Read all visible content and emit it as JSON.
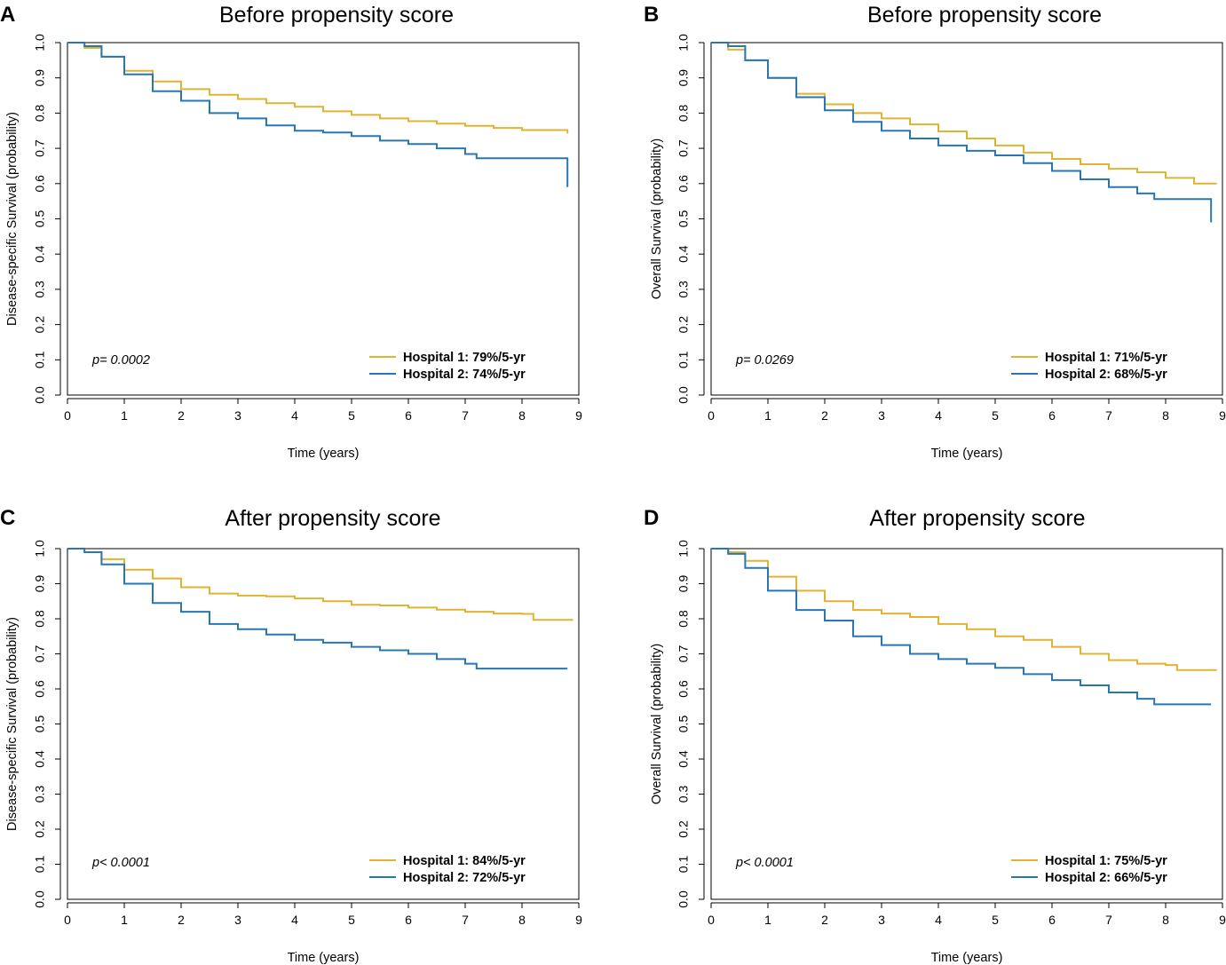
{
  "colors": {
    "hospital1": "#E0B431",
    "hospital2": "#2777B5",
    "axis": "#000000"
  },
  "chart_data": [
    {
      "type": "line",
      "panel": "A",
      "title": "Before propensity score",
      "xlabel": "Time (years)",
      "ylabel": "Disease-specific Survival (probability)",
      "xlim": [
        0,
        9
      ],
      "ylim": [
        0,
        1
      ],
      "xticks": [
        "0",
        "1",
        "2",
        "3",
        "4",
        "5",
        "6",
        "7",
        "8",
        "9"
      ],
      "yticks": [
        "0.0",
        "0.1",
        "0.2",
        "0.3",
        "0.4",
        "0.5",
        "0.6",
        "0.7",
        "0.8",
        "0.9",
        "1.0"
      ],
      "pvalue": "p= 0.0002",
      "legend_position": "bottom-right",
      "series": [
        {
          "name": "Hospital 1: 79%/5-yr",
          "color": "#E0B431",
          "x": [
            0,
            0.3,
            0.6,
            1.0,
            1.5,
            2.0,
            2.5,
            3.0,
            3.5,
            4.0,
            4.5,
            5.0,
            5.5,
            6.0,
            6.5,
            7.0,
            7.5,
            8.0,
            8.8
          ],
          "y": [
            1.0,
            0.985,
            0.96,
            0.92,
            0.89,
            0.868,
            0.852,
            0.84,
            0.828,
            0.818,
            0.805,
            0.795,
            0.785,
            0.777,
            0.77,
            0.764,
            0.758,
            0.752,
            0.742
          ]
        },
        {
          "name": "Hospital 2: 74%/5-yr",
          "color": "#2777B5",
          "x": [
            0,
            0.3,
            0.6,
            1.0,
            1.5,
            2.0,
            2.5,
            3.0,
            3.5,
            4.0,
            4.5,
            5.0,
            5.5,
            6.0,
            6.5,
            7.0,
            7.2,
            8.8,
            8.8
          ],
          "y": [
            1.0,
            0.99,
            0.96,
            0.91,
            0.862,
            0.835,
            0.8,
            0.785,
            0.765,
            0.75,
            0.745,
            0.735,
            0.722,
            0.712,
            0.7,
            0.684,
            0.672,
            0.672,
            0.59
          ]
        }
      ]
    },
    {
      "type": "line",
      "panel": "B",
      "title": "Before propensity score",
      "xlabel": "Time (years)",
      "ylabel": "Overall Survival (probability)",
      "xlim": [
        0,
        9
      ],
      "ylim": [
        0,
        1
      ],
      "xticks": [
        "0",
        "1",
        "2",
        "3",
        "4",
        "5",
        "6",
        "7",
        "8",
        "9"
      ],
      "yticks": [
        "0.0",
        "0.1",
        "0.2",
        "0.3",
        "0.4",
        "0.5",
        "0.6",
        "0.7",
        "0.8",
        "0.9",
        "1.0"
      ],
      "pvalue": "p= 0.0269",
      "legend_position": "bottom-right",
      "series": [
        {
          "name": "Hospital 1: 71%/5-yr",
          "color": "#E0B431",
          "x": [
            0,
            0.3,
            0.6,
            1.0,
            1.5,
            2.0,
            2.5,
            3.0,
            3.5,
            4.0,
            4.5,
            5.0,
            5.5,
            6.0,
            6.5,
            7.0,
            7.5,
            8.0,
            8.5,
            8.9
          ],
          "y": [
            1.0,
            0.98,
            0.95,
            0.9,
            0.855,
            0.825,
            0.8,
            0.785,
            0.768,
            0.748,
            0.728,
            0.708,
            0.688,
            0.67,
            0.655,
            0.642,
            0.632,
            0.616,
            0.6,
            0.6
          ]
        },
        {
          "name": "Hospital 2: 68%/5-yr",
          "color": "#2777B5",
          "x": [
            0,
            0.3,
            0.6,
            1.0,
            1.5,
            2.0,
            2.5,
            3.0,
            3.5,
            4.0,
            4.5,
            5.0,
            5.5,
            6.0,
            6.5,
            7.0,
            7.5,
            7.8,
            8.8,
            8.8
          ],
          "y": [
            1.0,
            0.99,
            0.95,
            0.9,
            0.845,
            0.808,
            0.775,
            0.75,
            0.728,
            0.708,
            0.693,
            0.68,
            0.658,
            0.636,
            0.612,
            0.59,
            0.572,
            0.556,
            0.556,
            0.49
          ]
        }
      ]
    },
    {
      "type": "line",
      "panel": "C",
      "title": "After propensity score",
      "xlabel": "Time (years)",
      "ylabel": "Disease-specific Survival (probability)",
      "xlim": [
        0,
        9
      ],
      "ylim": [
        0,
        1
      ],
      "xticks": [
        "0",
        "1",
        "2",
        "3",
        "4",
        "5",
        "6",
        "7",
        "8",
        "9"
      ],
      "yticks": [
        "0.0",
        "0.1",
        "0.2",
        "0.3",
        "0.4",
        "0.5",
        "0.6",
        "0.7",
        "0.8",
        "0.9",
        "1.0"
      ],
      "pvalue": "p< 0.0001",
      "legend_position": "bottom-right",
      "series": [
        {
          "name": "Hospital 1: 84%/5-yr",
          "color": "#E0B431",
          "x": [
            0,
            0.3,
            0.6,
            1.0,
            1.5,
            2.0,
            2.5,
            3.0,
            3.5,
            4.0,
            4.5,
            5.0,
            5.5,
            6.0,
            6.5,
            7.0,
            7.5,
            8.0,
            8.2,
            8.9
          ],
          "y": [
            1.0,
            0.99,
            0.97,
            0.94,
            0.915,
            0.89,
            0.872,
            0.866,
            0.864,
            0.858,
            0.85,
            0.84,
            0.838,
            0.832,
            0.826,
            0.82,
            0.815,
            0.814,
            0.797,
            0.797
          ]
        },
        {
          "name": "Hospital 2: 72%/5-yr",
          "color": "#2777B5",
          "x": [
            0,
            0.3,
            0.6,
            1.0,
            1.5,
            2.0,
            2.5,
            3.0,
            3.5,
            4.0,
            4.5,
            5.0,
            5.5,
            6.0,
            6.5,
            7.0,
            7.2,
            8.8
          ],
          "y": [
            1.0,
            0.99,
            0.955,
            0.9,
            0.845,
            0.82,
            0.785,
            0.77,
            0.755,
            0.74,
            0.732,
            0.72,
            0.71,
            0.7,
            0.685,
            0.672,
            0.658,
            0.658
          ]
        }
      ]
    },
    {
      "type": "line",
      "panel": "D",
      "title": "After propensity score",
      "xlabel": "Time (years)",
      "ylabel": "Overall Survival (probability)",
      "xlim": [
        0,
        9
      ],
      "ylim": [
        0,
        1
      ],
      "xticks": [
        "0",
        "1",
        "2",
        "3",
        "4",
        "5",
        "6",
        "7",
        "8",
        "9"
      ],
      "yticks": [
        "0.0",
        "0.1",
        "0.2",
        "0.3",
        "0.4",
        "0.5",
        "0.6",
        "0.7",
        "0.8",
        "0.9",
        "1.0"
      ],
      "pvalue": "p< 0.0001",
      "legend_position": "bottom-right",
      "series": [
        {
          "name": "Hospital 1: 75%/5-yr",
          "color": "#E0B431",
          "x": [
            0,
            0.3,
            0.6,
            1.0,
            1.5,
            2.0,
            2.5,
            3.0,
            3.5,
            4.0,
            4.5,
            5.0,
            5.5,
            6.0,
            6.5,
            7.0,
            7.5,
            8.0,
            8.2,
            8.9
          ],
          "y": [
            1.0,
            0.99,
            0.965,
            0.92,
            0.88,
            0.85,
            0.825,
            0.815,
            0.805,
            0.785,
            0.77,
            0.75,
            0.74,
            0.72,
            0.7,
            0.682,
            0.672,
            0.668,
            0.654,
            0.654
          ]
        },
        {
          "name": "Hospital 2: 66%/5-yr",
          "color": "#2777B5",
          "x": [
            0,
            0.3,
            0.6,
            1.0,
            1.5,
            2.0,
            2.5,
            3.0,
            3.5,
            4.0,
            4.5,
            5.0,
            5.5,
            6.0,
            6.5,
            7.0,
            7.5,
            7.8,
            8.8
          ],
          "y": [
            1.0,
            0.985,
            0.945,
            0.88,
            0.825,
            0.795,
            0.75,
            0.725,
            0.7,
            0.685,
            0.672,
            0.66,
            0.642,
            0.625,
            0.61,
            0.59,
            0.572,
            0.556,
            0.556
          ]
        }
      ]
    }
  ]
}
